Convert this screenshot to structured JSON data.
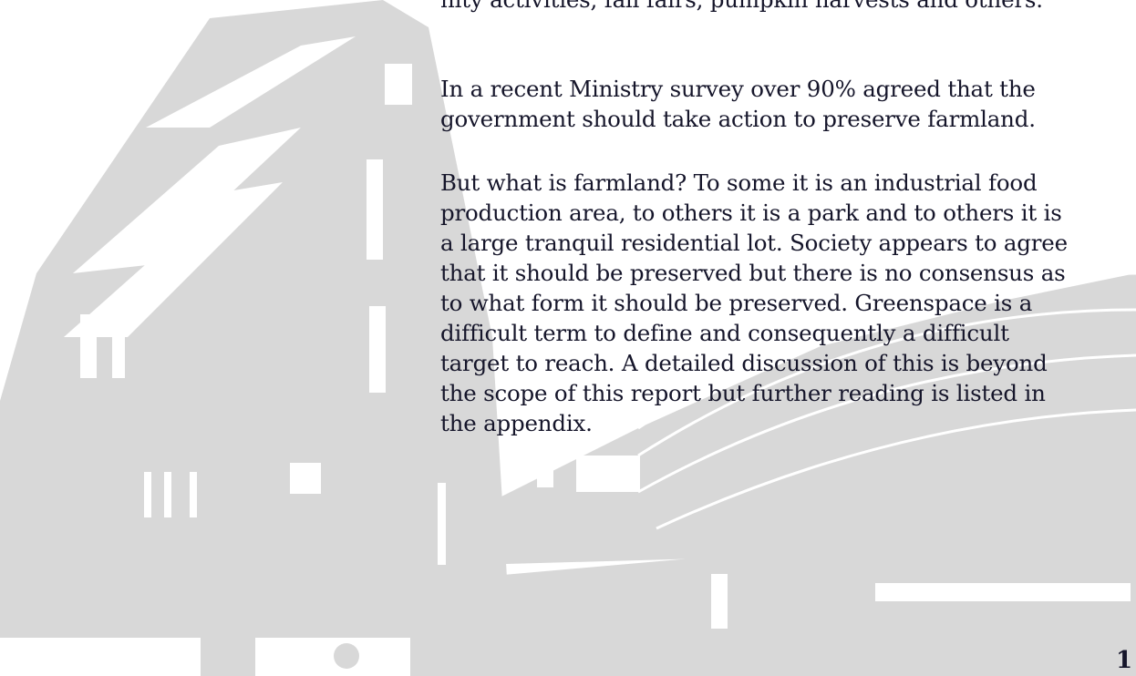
{
  "paragraphs": [
    {
      "lines": [
        "nity activities, fall fairs, pumpkin harvests and others."
      ]
    },
    {
      "lines": [
        "In a recent Ministry survey over 90% agreed that the",
        "government should take action to preserve farmland."
      ]
    },
    {
      "lines": [
        "But what is farmland? To some it is an industrial food",
        "production area, to others it is a park and to others it is",
        "a large tranquil residential lot. Society appears to agree",
        "that it should be preserved but there is no consensus as",
        "to what form it should be preserved. Greenspace is a",
        "difficult term to define and consequently a difficult",
        "target to reach. A detailed discussion of this is beyond",
        "the scope of this report but further reading is listed in",
        "the appendix."
      ]
    }
  ],
  "page_number": "1"
}
